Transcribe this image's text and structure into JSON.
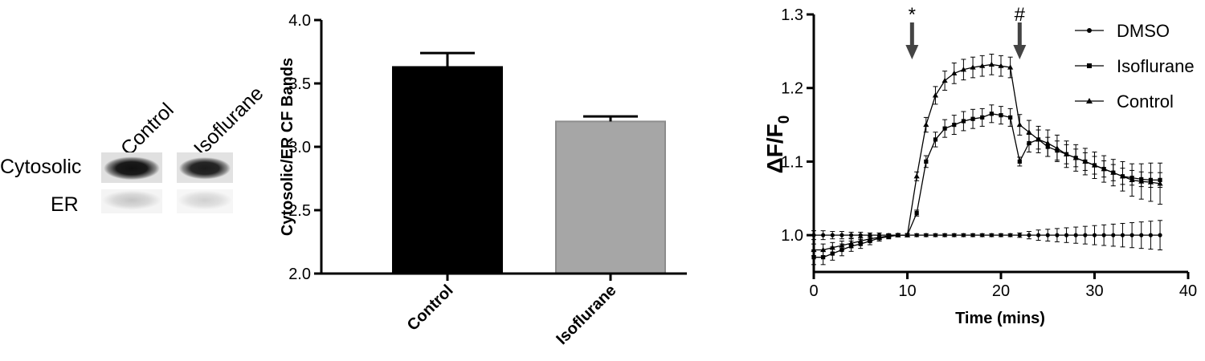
{
  "blot": {
    "lanes": [
      "Control",
      "Isoflurane"
    ],
    "rows": [
      "Cytosolic",
      "ER"
    ]
  },
  "chart_data": [
    {
      "type": "bar",
      "categories": [
        "Control",
        "Isoflurane"
      ],
      "values": [
        3.63,
        3.2
      ],
      "errors": [
        0.11,
        0.04
      ],
      "colors": [
        "#000000",
        "#a6a6a6"
      ],
      "ylabel": "Cytosolic/ER CF Bands",
      "xlabel": "",
      "ylim": [
        2.0,
        4.0
      ],
      "yticks": [
        "2.0",
        "2.5",
        "3.0",
        "3.5",
        "4.0"
      ]
    },
    {
      "type": "line",
      "xlabel": "Time (mins)",
      "ylabel": "ΔF/F",
      "ylabel_sub": "0",
      "xlim": [
        0,
        40
      ],
      "ylim": [
        0.95,
        1.3
      ],
      "xticks": [
        "0",
        "10",
        "20",
        "30",
        "40"
      ],
      "yticks": [
        "1.0",
        "1.1",
        "1.2",
        "1.3"
      ],
      "legend_position": "top-right",
      "annotations": [
        {
          "label": "*",
          "x": 10.5
        },
        {
          "label": "#",
          "x": 22
        }
      ],
      "series": [
        {
          "name": "DMSO",
          "marker": "circle",
          "x": [
            0,
            1,
            2,
            3,
            4,
            5,
            6,
            7,
            8,
            9,
            10,
            11,
            12,
            13,
            14,
            15,
            16,
            17,
            18,
            19,
            20,
            21,
            22,
            23,
            24,
            25,
            26,
            27,
            28,
            29,
            30,
            31,
            32,
            33,
            34,
            35,
            36,
            37
          ],
          "y": [
            1.0,
            1.0,
            1.0,
            1.0,
            1.0,
            1.0,
            1.0,
            1.0,
            1.0,
            1.0,
            1.0,
            1.0,
            1.0,
            1.0,
            1.0,
            1.0,
            1.0,
            1.0,
            1.0,
            1.0,
            1.0,
            1.0,
            1.0,
            1.0,
            1.0,
            1.0,
            1.0,
            1.0,
            1.0,
            1.0,
            1.0,
            1.0,
            1.0,
            1.0,
            1.0,
            1.0,
            1.0,
            1.0
          ],
          "err": [
            0.006,
            0.006,
            0.005,
            0.005,
            0.004,
            0.004,
            0.003,
            0.003,
            0.002,
            0.002,
            0.002,
            0.002,
            0.002,
            0.002,
            0.002,
            0.002,
            0.002,
            0.002,
            0.002,
            0.002,
            0.002,
            0.002,
            0.003,
            0.005,
            0.007,
            0.008,
            0.009,
            0.01,
            0.011,
            0.012,
            0.013,
            0.014,
            0.015,
            0.016,
            0.017,
            0.018,
            0.019,
            0.02
          ]
        },
        {
          "name": "Isoflurane",
          "marker": "square",
          "x": [
            0,
            1,
            2,
            3,
            4,
            5,
            6,
            7,
            8,
            9,
            10,
            11,
            12,
            13,
            14,
            15,
            16,
            17,
            18,
            19,
            20,
            21,
            22,
            23,
            24,
            25,
            26,
            27,
            28,
            29,
            30,
            31,
            32,
            33,
            34,
            35,
            36,
            37
          ],
          "y": [
            0.97,
            0.97,
            0.975,
            0.98,
            0.985,
            0.988,
            0.992,
            0.996,
            0.998,
            1.0,
            1.0,
            1.03,
            1.1,
            1.13,
            1.145,
            1.15,
            1.155,
            1.158,
            1.16,
            1.165,
            1.163,
            1.16,
            1.1,
            1.125,
            1.13,
            1.12,
            1.115,
            1.11,
            1.105,
            1.1,
            1.095,
            1.09,
            1.085,
            1.08,
            1.078,
            1.076,
            1.075,
            1.075
          ],
          "err": [
            0.01,
            0.01,
            0.009,
            0.008,
            0.007,
            0.006,
            0.005,
            0.004,
            0.003,
            0.002,
            0.002,
            0.004,
            0.008,
            0.01,
            0.012,
            0.013,
            0.013,
            0.013,
            0.012,
            0.012,
            0.012,
            0.012,
            0.006,
            0.012,
            0.013,
            0.013,
            0.013,
            0.013,
            0.012,
            0.012,
            0.012,
            0.011,
            0.011,
            0.011,
            0.01,
            0.01,
            0.01,
            0.01
          ]
        },
        {
          "name": "Control",
          "marker": "triangle",
          "x": [
            0,
            1,
            2,
            3,
            4,
            5,
            6,
            7,
            8,
            9,
            10,
            11,
            12,
            13,
            14,
            15,
            16,
            17,
            18,
            19,
            20,
            21,
            22,
            23,
            24,
            25,
            26,
            27,
            28,
            29,
            30,
            31,
            32,
            33,
            34,
            35,
            36,
            37
          ],
          "y": [
            0.98,
            0.98,
            0.983,
            0.986,
            0.989,
            0.992,
            0.995,
            0.997,
            0.999,
            1.0,
            1.0,
            1.08,
            1.15,
            1.19,
            1.21,
            1.22,
            1.225,
            1.228,
            1.23,
            1.232,
            1.23,
            1.228,
            1.15,
            1.14,
            1.13,
            1.125,
            1.118,
            1.11,
            1.105,
            1.1,
            1.095,
            1.09,
            1.085,
            1.08,
            1.075,
            1.073,
            1.072,
            1.07
          ],
          "err": [
            0.008,
            0.008,
            0.007,
            0.006,
            0.006,
            0.005,
            0.004,
            0.003,
            0.002,
            0.002,
            0.002,
            0.006,
            0.01,
            0.012,
            0.013,
            0.014,
            0.014,
            0.014,
            0.014,
            0.014,
            0.014,
            0.014,
            0.014,
            0.016,
            0.018,
            0.018,
            0.018,
            0.018,
            0.018,
            0.018,
            0.018,
            0.018,
            0.018,
            0.02,
            0.022,
            0.024,
            0.026,
            0.028
          ]
        }
      ]
    }
  ]
}
